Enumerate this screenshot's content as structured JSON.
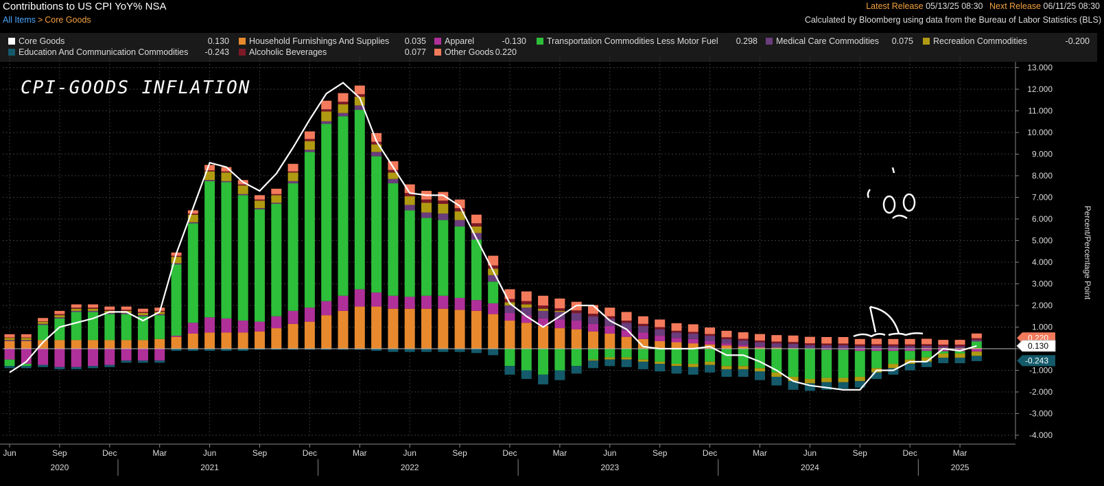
{
  "header": {
    "title": "Contributions to US CPI YoY% NSA",
    "breadcrumb_root": "All Items",
    "breadcrumb_sep": ">",
    "breadcrumb_current": "Core Goods",
    "latest_release_label": "Latest Release",
    "latest_release_value": "05/13/25 08:30",
    "next_release_label": "Next Release",
    "next_release_value": "06/11/25 08:30",
    "source": "Calculated by Bloomberg using data from the Bureau of Labor Statistics (BLS)"
  },
  "colors": {
    "core": "#ffffff",
    "furnishings": "#e8892e",
    "apparel": "#b0309a",
    "transport": "#2dbe3a",
    "medical": "#6a3d7c",
    "recreation": "#b09a12",
    "education": "#145a6a",
    "alcohol": "#7c1a28",
    "other": "#f47a5c"
  },
  "annotations": {
    "title": "CPI-GOODS INFLATION"
  },
  "chart_data": {
    "type": "bar",
    "stacked": true,
    "ylabel": "Percent/Percentage Point",
    "ylim": [
      -4,
      13.5
    ],
    "yticks": [
      "13.000",
      "12.000",
      "11.000",
      "10.000",
      "9.000",
      "8.000",
      "7.000",
      "6.000",
      "5.000",
      "4.000",
      "3.000",
      "2.000",
      "1.000",
      "0.000",
      "-1.000",
      "-2.000",
      "-3.000",
      "-4.000"
    ],
    "x_month_labels": [
      {
        "i": 0,
        "label": "Jun"
      },
      {
        "i": 3,
        "label": "Sep"
      },
      {
        "i": 6,
        "label": "Dec"
      },
      {
        "i": 9,
        "label": "Mar"
      },
      {
        "i": 12,
        "label": "Jun"
      },
      {
        "i": 15,
        "label": "Sep"
      },
      {
        "i": 18,
        "label": "Dec"
      },
      {
        "i": 21,
        "label": "Mar"
      },
      {
        "i": 24,
        "label": "Jun"
      },
      {
        "i": 27,
        "label": "Sep"
      },
      {
        "i": 30,
        "label": "Dec"
      },
      {
        "i": 33,
        "label": "Mar"
      },
      {
        "i": 36,
        "label": "Jun"
      },
      {
        "i": 39,
        "label": "Sep"
      },
      {
        "i": 42,
        "label": "Dec"
      },
      {
        "i": 45,
        "label": "Mar"
      },
      {
        "i": 48,
        "label": "Jun"
      },
      {
        "i": 51,
        "label": "Sep"
      },
      {
        "i": 54,
        "label": "Dec"
      },
      {
        "i": 57,
        "label": "Mar"
      }
    ],
    "x_year_labels": [
      {
        "i": 3,
        "label": "2020"
      },
      {
        "i": 12,
        "label": "2021"
      },
      {
        "i": 24,
        "label": "2022"
      },
      {
        "i": 36,
        "label": "2023"
      },
      {
        "i": 48,
        "label": "2024"
      },
      {
        "i": 57,
        "label": "2025"
      }
    ],
    "year_dividers": [
      6.5,
      18.5,
      30.5,
      42.5,
      54.5
    ],
    "categories_count": 59,
    "core": [
      -1.1,
      -0.6,
      0.3,
      1.0,
      1.2,
      1.4,
      1.7,
      1.7,
      1.3,
      1.7,
      4.4,
      6.5,
      8.6,
      8.4,
      7.7,
      7.3,
      8.1,
      9.3,
      10.6,
      11.8,
      12.3,
      11.6,
      9.6,
      8.4,
      7.2,
      7.1,
      7.1,
      6.6,
      5.1,
      3.6,
      2.1,
      1.5,
      1.0,
      1.5,
      2.0,
      2.0,
      1.3,
      0.9,
      0.1,
      0.0,
      0.0,
      0.0,
      0.1,
      -0.3,
      -0.3,
      -0.6,
      -1.0,
      -1.5,
      -1.7,
      -1.8,
      -1.9,
      -1.9,
      -1.0,
      -1.0,
      -0.6,
      -0.6,
      -0.0,
      -0.1,
      0.13
    ],
    "series": [
      {
        "key": "furnishings",
        "name": "Household Furnishings And Supplies",
        "value": "0.035",
        "values": [
          0.35,
          0.35,
          0.4,
          0.4,
          0.4,
          0.4,
          0.4,
          0.4,
          0.4,
          0.45,
          0.55,
          0.7,
          0.75,
          0.75,
          0.75,
          0.8,
          0.95,
          1.15,
          1.25,
          1.55,
          1.75,
          1.95,
          1.95,
          1.85,
          1.85,
          1.85,
          1.85,
          1.8,
          1.75,
          1.6,
          1.3,
          1.2,
          1.05,
          0.95,
          0.9,
          0.8,
          0.7,
          0.55,
          0.45,
          0.35,
          0.3,
          0.25,
          0.2,
          0.15,
          0.1,
          0.05,
          0.05,
          0.03,
          0.02,
          0.01,
          0.01,
          0.0,
          0.01,
          0.02,
          0.02,
          0.03,
          0.03,
          0.03,
          0.035
        ]
      },
      {
        "key": "apparel",
        "name": "Apparel",
        "value": "-0.130",
        "values": [
          -0.5,
          -0.7,
          -0.75,
          -0.85,
          -0.85,
          -0.8,
          -0.75,
          -0.55,
          -0.55,
          -0.55,
          0.05,
          0.5,
          0.7,
          0.65,
          0.55,
          0.45,
          0.55,
          0.6,
          0.65,
          0.65,
          0.7,
          0.8,
          0.65,
          0.6,
          0.55,
          0.6,
          0.6,
          0.55,
          0.5,
          0.5,
          0.35,
          0.35,
          0.35,
          0.4,
          0.4,
          0.35,
          0.35,
          0.3,
          0.3,
          0.25,
          0.2,
          0.2,
          0.15,
          0.1,
          0.08,
          0.05,
          0.0,
          0.0,
          0.0,
          -0.05,
          -0.05,
          -0.1,
          -0.1,
          -0.1,
          -0.1,
          -0.1,
          -0.12,
          -0.12,
          -0.13
        ]
      },
      {
        "key": "transport",
        "name": "Transportation Commodities Less Motor Fuel",
        "value": "0.298",
        "values": [
          -0.3,
          -0.1,
          0.7,
          1.0,
          1.3,
          1.3,
          1.2,
          1.2,
          1.1,
          1.1,
          3.3,
          4.6,
          6.3,
          6.3,
          5.8,
          5.2,
          5.2,
          5.9,
          7.2,
          8.2,
          8.3,
          8.3,
          6.3,
          5.2,
          4.0,
          3.6,
          3.5,
          3.3,
          2.8,
          1.0,
          -0.8,
          -1.0,
          -1.2,
          -1.0,
          -0.8,
          -0.5,
          -0.4,
          -0.4,
          -0.5,
          -0.6,
          -0.7,
          -0.7,
          -0.6,
          -0.8,
          -0.8,
          -0.9,
          -1.1,
          -1.3,
          -1.4,
          -1.3,
          -1.3,
          -1.2,
          -0.8,
          -0.6,
          -0.4,
          -0.3,
          -0.1,
          -0.1,
          0.298
        ]
      },
      {
        "key": "medical",
        "name": "Medical Care Commodities",
        "value": "0.075",
        "values": [
          0.05,
          0.05,
          0.05,
          0.05,
          0.05,
          0.05,
          0.05,
          0.05,
          0.05,
          0.05,
          0.05,
          0.05,
          0.05,
          0.05,
          0.05,
          0.05,
          0.05,
          0.1,
          0.1,
          0.12,
          0.15,
          0.2,
          0.2,
          0.2,
          0.25,
          0.25,
          0.3,
          0.3,
          0.3,
          0.3,
          0.35,
          0.35,
          0.35,
          0.35,
          0.35,
          0.35,
          0.35,
          0.35,
          0.3,
          0.3,
          0.25,
          0.25,
          0.25,
          0.2,
          0.2,
          0.2,
          0.2,
          0.2,
          0.15,
          0.15,
          0.15,
          0.12,
          0.12,
          0.1,
          0.1,
          0.1,
          0.08,
          0.08,
          0.075
        ]
      },
      {
        "key": "recreation",
        "name": "Recreation Commodities",
        "value": "-0.200",
        "values": [
          0.1,
          0.1,
          0.1,
          0.1,
          0.1,
          0.1,
          0.1,
          0.1,
          0.1,
          0.1,
          0.3,
          0.35,
          0.4,
          0.4,
          0.4,
          0.35,
          0.35,
          0.4,
          0.4,
          0.45,
          0.4,
          0.4,
          0.35,
          0.3,
          0.4,
          0.45,
          0.45,
          0.4,
          0.3,
          0.3,
          0.15,
          0.15,
          0.1,
          0.05,
          0.0,
          -0.05,
          -0.1,
          -0.1,
          -0.1,
          -0.1,
          -0.1,
          -0.15,
          -0.15,
          -0.15,
          -0.15,
          -0.15,
          -0.2,
          -0.2,
          -0.2,
          -0.2,
          -0.2,
          -0.2,
          -0.2,
          -0.2,
          -0.2,
          -0.2,
          -0.2,
          -0.2,
          -0.2
        ]
      },
      {
        "key": "education",
        "name": "Education And Communication Commodities",
        "value": "-0.243",
        "values": [
          -0.1,
          -0.1,
          -0.1,
          -0.1,
          -0.1,
          -0.1,
          -0.1,
          -0.1,
          -0.1,
          -0.1,
          -0.1,
          -0.1,
          -0.1,
          -0.1,
          -0.1,
          -0.05,
          -0.05,
          -0.05,
          -0.05,
          -0.05,
          -0.05,
          -0.05,
          -0.1,
          -0.15,
          -0.15,
          -0.15,
          -0.15,
          -0.15,
          -0.2,
          -0.3,
          -0.4,
          -0.4,
          -0.45,
          -0.45,
          -0.35,
          -0.35,
          -0.3,
          -0.35,
          -0.35,
          -0.35,
          -0.35,
          -0.35,
          -0.35,
          -0.35,
          -0.35,
          -0.4,
          -0.4,
          -0.4,
          -0.35,
          -0.35,
          -0.3,
          -0.3,
          -0.3,
          -0.3,
          -0.3,
          -0.25,
          -0.25,
          -0.25,
          -0.243
        ]
      },
      {
        "key": "alcohol",
        "name": "Alcoholic Beverages",
        "value": "0.077",
        "values": [
          0.02,
          0.02,
          0.02,
          0.05,
          0.05,
          0.05,
          0.05,
          0.05,
          0.05,
          0.05,
          0.05,
          0.05,
          0.05,
          0.05,
          0.05,
          0.05,
          0.05,
          0.05,
          0.1,
          0.1,
          0.12,
          0.12,
          0.12,
          0.12,
          0.15,
          0.15,
          0.15,
          0.15,
          0.15,
          0.15,
          0.15,
          0.15,
          0.15,
          0.12,
          0.12,
          0.12,
          0.1,
          0.1,
          0.1,
          0.1,
          0.08,
          0.08,
          0.08,
          0.08,
          0.08,
          0.08,
          0.08,
          0.08,
          0.08,
          0.08,
          0.08,
          0.08,
          0.08,
          0.08,
          0.08,
          0.08,
          0.08,
          0.08,
          0.077
        ]
      },
      {
        "key": "other",
        "name": "Other Goods",
        "value": "0.220",
        "values": [
          0.15,
          0.15,
          0.15,
          0.15,
          0.15,
          0.15,
          0.15,
          0.15,
          0.15,
          0.15,
          0.15,
          0.15,
          0.25,
          0.2,
          0.2,
          0.2,
          0.25,
          0.35,
          0.35,
          0.4,
          0.4,
          0.4,
          0.4,
          0.4,
          0.4,
          0.4,
          0.4,
          0.4,
          0.4,
          0.45,
          0.45,
          0.45,
          0.45,
          0.45,
          0.4,
          0.4,
          0.4,
          0.4,
          0.35,
          0.35,
          0.35,
          0.35,
          0.3,
          0.3,
          0.3,
          0.3,
          0.3,
          0.3,
          0.3,
          0.3,
          0.3,
          0.25,
          0.25,
          0.25,
          0.25,
          0.25,
          0.22,
          0.22,
          0.22
        ]
      }
    ],
    "core_series": {
      "name": "Core Goods",
      "value": "0.130"
    },
    "end_labels": [
      {
        "key": "other",
        "text": "0.220"
      },
      {
        "key": "core",
        "text": "0.130"
      },
      {
        "key": "education",
        "text": "-0.243"
      }
    ]
  }
}
